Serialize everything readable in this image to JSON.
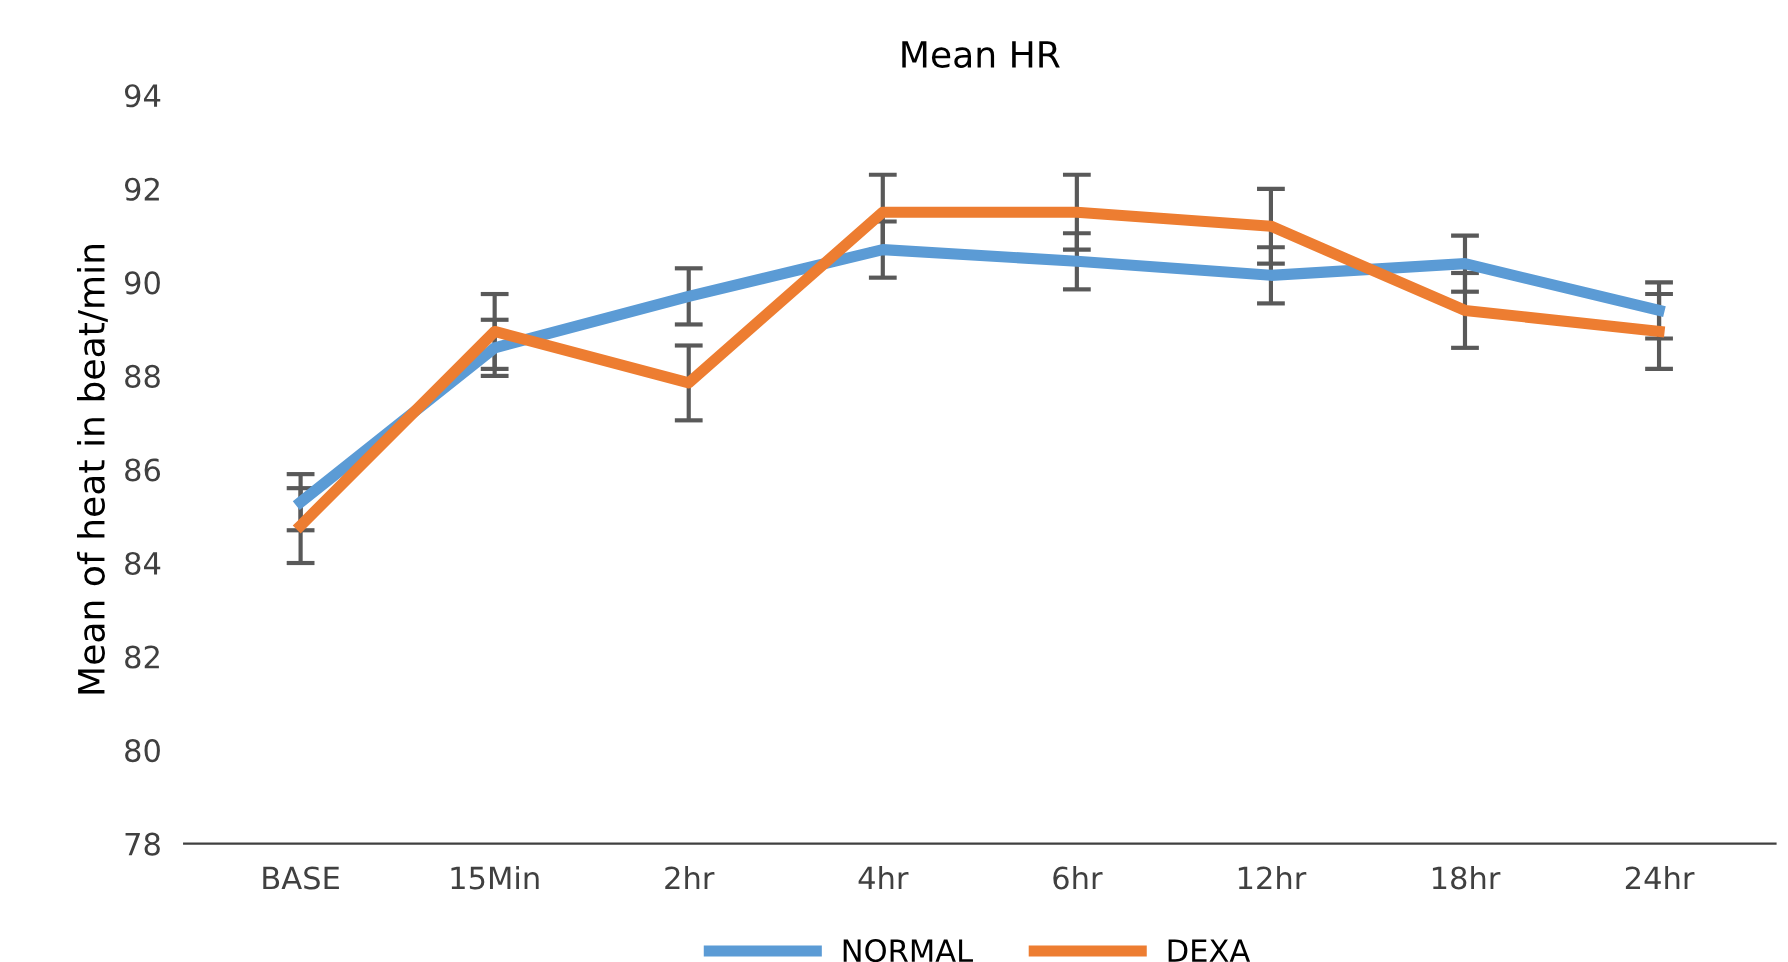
{
  "chart_data": {
    "type": "line",
    "title": "Mean HR",
    "ylabel": "Mean of heat in beat/min",
    "categories": [
      "BASE",
      "15Min",
      "2hr",
      "4hr",
      "6hr",
      "12hr",
      "18hr",
      "24hr"
    ],
    "series": [
      {
        "name": "NORMAL",
        "color": "#5b9bd5",
        "values": [
          85.3,
          88.6,
          89.7,
          90.7,
          90.45,
          90.15,
          90.4,
          89.4
        ],
        "errors": [
          0.6,
          0.6,
          0.6,
          0.6,
          0.6,
          0.6,
          0.6,
          0.6
        ]
      },
      {
        "name": "DEXA",
        "color": "#ed7d31",
        "values": [
          84.8,
          88.95,
          87.85,
          91.5,
          91.5,
          91.2,
          89.4,
          88.95
        ],
        "errors": [
          0.8,
          0.8,
          0.8,
          0.8,
          0.8,
          0.8,
          0.8,
          0.8
        ]
      }
    ],
    "ylim": [
      78,
      94
    ],
    "yticks": [
      78,
      80,
      82,
      84,
      86,
      88,
      90,
      92,
      94
    ],
    "grid": false,
    "legend": "bottom",
    "marker": "none",
    "line_style": "solid"
  }
}
